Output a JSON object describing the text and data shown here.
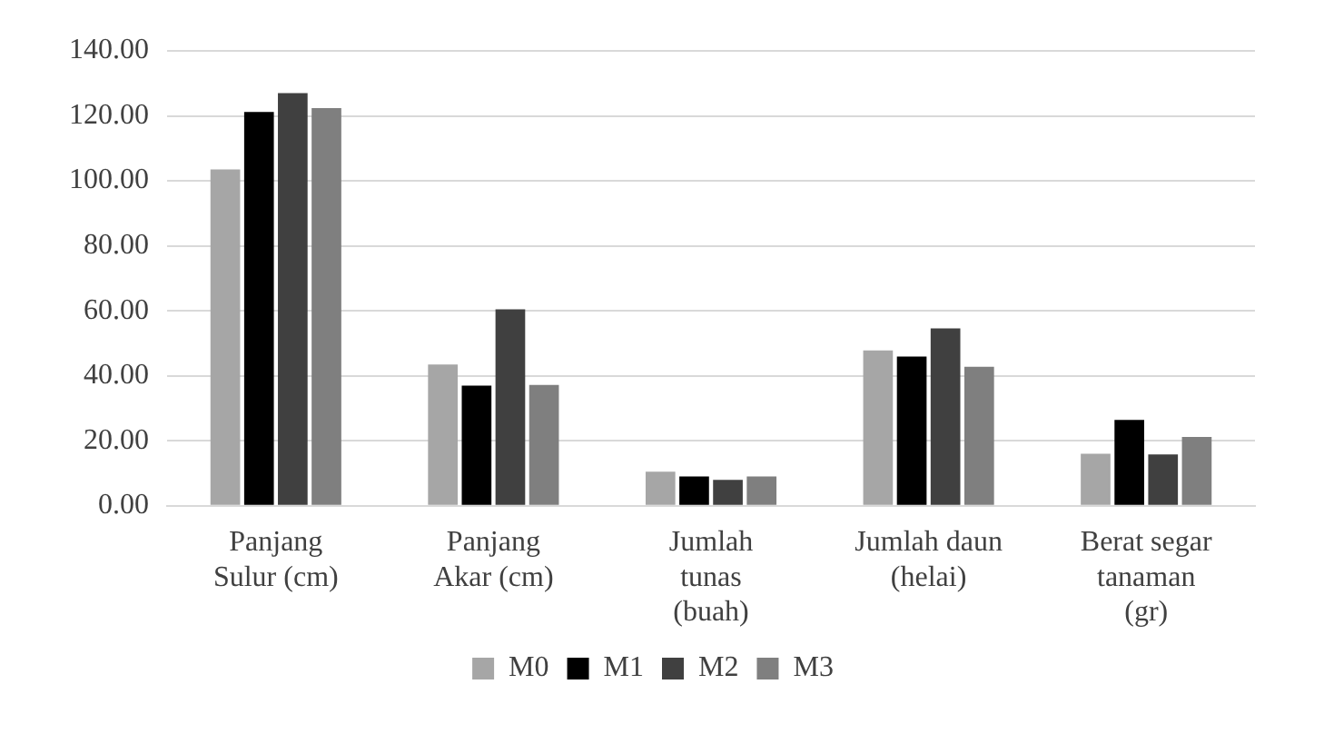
{
  "chart_data": {
    "type": "bar",
    "categories": [
      "Panjang Sulur (cm)",
      "Panjang Akar (cm)",
      "Jumlah tunas (buah)",
      "Jumlah daun (helai)",
      "Berat segar tanaman (gr)"
    ],
    "series": [
      {
        "name": "M0",
        "color": "#a6a6a6",
        "values": [
          103.5,
          43.5,
          10.5,
          47.8,
          16
        ]
      },
      {
        "name": "M1",
        "color": "#000000",
        "values": [
          121.2,
          37,
          9,
          45.9,
          26.4
        ]
      },
      {
        "name": "M2",
        "color": "#404040",
        "values": [
          127,
          60.5,
          8,
          54.6,
          15.8
        ]
      },
      {
        "name": "M3",
        "color": "#7f7f7f",
        "values": [
          122.4,
          37.2,
          9,
          42.8,
          21.2
        ]
      }
    ],
    "ylim": [
      0,
      140
    ],
    "yticks": [
      {
        "value": 0,
        "label": "0.00"
      },
      {
        "value": 20,
        "label": "20.00"
      },
      {
        "value": 40,
        "label": "40.00"
      },
      {
        "value": 60,
        "label": "60.00"
      },
      {
        "value": 80,
        "label": "80.00"
      },
      {
        "value": 100,
        "label": "100.00"
      },
      {
        "value": 120,
        "label": "120.00"
      },
      {
        "value": 140,
        "label": "140.00"
      }
    ],
    "grid": "y",
    "legend": "bottom"
  }
}
